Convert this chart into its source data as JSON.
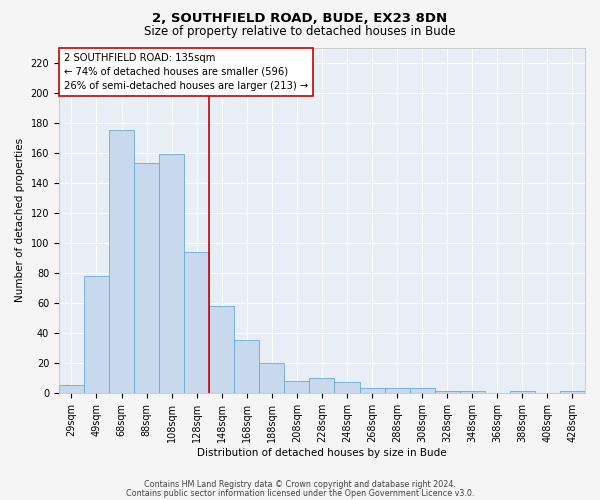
{
  "title": "2, SOUTHFIELD ROAD, BUDE, EX23 8DN",
  "subtitle": "Size of property relative to detached houses in Bude",
  "xlabel": "Distribution of detached houses by size in Bude",
  "ylabel": "Number of detached properties",
  "bar_labels": [
    "29sqm",
    "49sqm",
    "68sqm",
    "88sqm",
    "108sqm",
    "128sqm",
    "148sqm",
    "168sqm",
    "188sqm",
    "208sqm",
    "228sqm",
    "248sqm",
    "268sqm",
    "288sqm",
    "308sqm",
    "328sqm",
    "348sqm",
    "368sqm",
    "388sqm",
    "408sqm",
    "428sqm"
  ],
  "bar_values": [
    5,
    78,
    175,
    153,
    159,
    94,
    58,
    35,
    20,
    8,
    10,
    7,
    3,
    3,
    3,
    1,
    1,
    0,
    1,
    0,
    1
  ],
  "bar_color": "#c8d9ee",
  "bar_edge_color": "#6aaad4",
  "vline_color": "#cc0000",
  "annotation_text": "2 SOUTHFIELD ROAD: 135sqm\n← 74% of detached houses are smaller (596)\n26% of semi-detached houses are larger (213) →",
  "annotation_box_color": "#cc0000",
  "ylim": [
    0,
    230
  ],
  "yticks": [
    0,
    20,
    40,
    60,
    80,
    100,
    120,
    140,
    160,
    180,
    200,
    220
  ],
  "fig_bg_color": "#f5f5f5",
  "plot_bg_color": "#e8eef5",
  "footer_line1": "Contains HM Land Registry data © Crown copyright and database right 2024.",
  "footer_line2": "Contains public sector information licensed under the Open Government Licence v3.0.",
  "title_fontsize": 9.5,
  "subtitle_fontsize": 8.5,
  "annotation_fontsize": 7.2,
  "axis_label_fontsize": 7.5,
  "tick_fontsize": 7,
  "footer_fontsize": 5.8
}
